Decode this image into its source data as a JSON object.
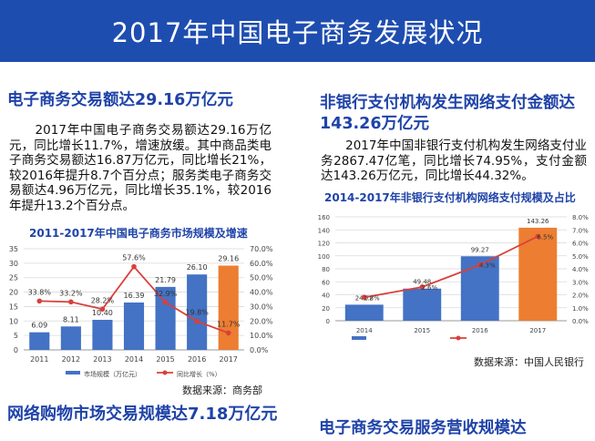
{
  "page_title": "2017年中国电子商务发展状况",
  "left": {
    "heading": "电子商务交易额达29.16万亿元",
    "paragraph": "　　2017年中国电子商务交易额达29.16万亿元，同比增长11.7%，增速放缓。其中商品类电子商务交易额达16.87万亿元，同比增长21%，较2016年提升8.7个百分点；服务类电子商务交易额达4.96万亿元，同比增长35.1%，较2016年提升13.2个百分点。",
    "bottom_heading": "网络购物市场交易规模达7.18万亿元"
  },
  "right": {
    "heading": "非银行支付机构发生网络支付金额达143.26万亿元",
    "paragraph": "　　2017年中国非银行支付机构发生网络支付业务2867.47亿笔，同比增长74.95%，支付金额达143.26万亿元，同比增长44.32%。",
    "bottom_heading": "电子商务交易服务营收规模达"
  },
  "chart_data": [
    {
      "type": "bar",
      "title": "2011-2017年中国电子商务市场规模及增速",
      "categories": [
        "2011",
        "2012",
        "2013",
        "2014",
        "2015",
        "2016",
        "2017"
      ],
      "series": [
        {
          "name": "市场规模（万亿元）",
          "kind": "bar",
          "values": [
            6.09,
            8.11,
            10.4,
            16.39,
            21.79,
            26.1,
            29.16
          ],
          "value_labels": [
            "6.09",
            "8.11",
            "10.40",
            "16.39",
            "21.79",
            "26.10",
            "29.16"
          ]
        },
        {
          "name": "同比增长（%）",
          "kind": "line",
          "values": [
            33.8,
            33.2,
            28.2,
            57.6,
            32.9,
            19.8,
            11.7
          ],
          "value_labels": [
            "33.8%",
            "33.2%",
            "28.2%",
            "57.6%",
            "32.9%",
            "19.8%",
            "11.7%"
          ]
        }
      ],
      "ylim": [
        0,
        35
      ],
      "y_ticks": [
        "0",
        "5",
        "10",
        "15",
        "20",
        "25",
        "30",
        "35"
      ],
      "y2lim": [
        0,
        70
      ],
      "y2_ticks": [
        "0.0%",
        "10.0%",
        "20.0%",
        "30.0%",
        "40.0%",
        "50.0%",
        "60.0%",
        "70.0%"
      ],
      "highlight_color": "#ed7d31",
      "bar_color": "#4472c4",
      "line_color": "#d9403a",
      "legend": "bottom",
      "grid": true,
      "source": "数据来源：商务部"
    },
    {
      "type": "bar",
      "title": "2014-2017年非银行支付机构网络支付规模及占比",
      "categories": [
        "2014",
        "2015",
        "2016",
        "2017"
      ],
      "series": [
        {
          "name": "",
          "kind": "bar",
          "values": [
            24.72,
            49.48,
            99.27,
            143.26
          ],
          "value_labels": [
            "24.72",
            "49.48",
            "99.27",
            "143.26"
          ]
        },
        {
          "name": "",
          "kind": "line",
          "values": [
            1.8,
            2.6,
            4.3,
            6.5
          ],
          "value_labels": [
            "1.8%",
            "2.6%",
            "4.3%",
            "6.5%"
          ]
        }
      ],
      "ylim": [
        0,
        160
      ],
      "y_ticks": [
        "0",
        "20",
        "40",
        "60",
        "80",
        "100",
        "120",
        "140",
        "160"
      ],
      "y2lim": [
        0,
        8
      ],
      "y2_ticks": [
        "0.0%",
        "1.0%",
        "2.0%",
        "3.0%",
        "4.0%",
        "5.0%",
        "6.0%",
        "7.0%",
        "8.0%"
      ],
      "highlight_color": "#ed7d31",
      "bar_color": "#4472c4",
      "line_color": "#d9403a",
      "legend": "bottom",
      "grid": true,
      "source": "数据来源：中国人民银行"
    }
  ]
}
